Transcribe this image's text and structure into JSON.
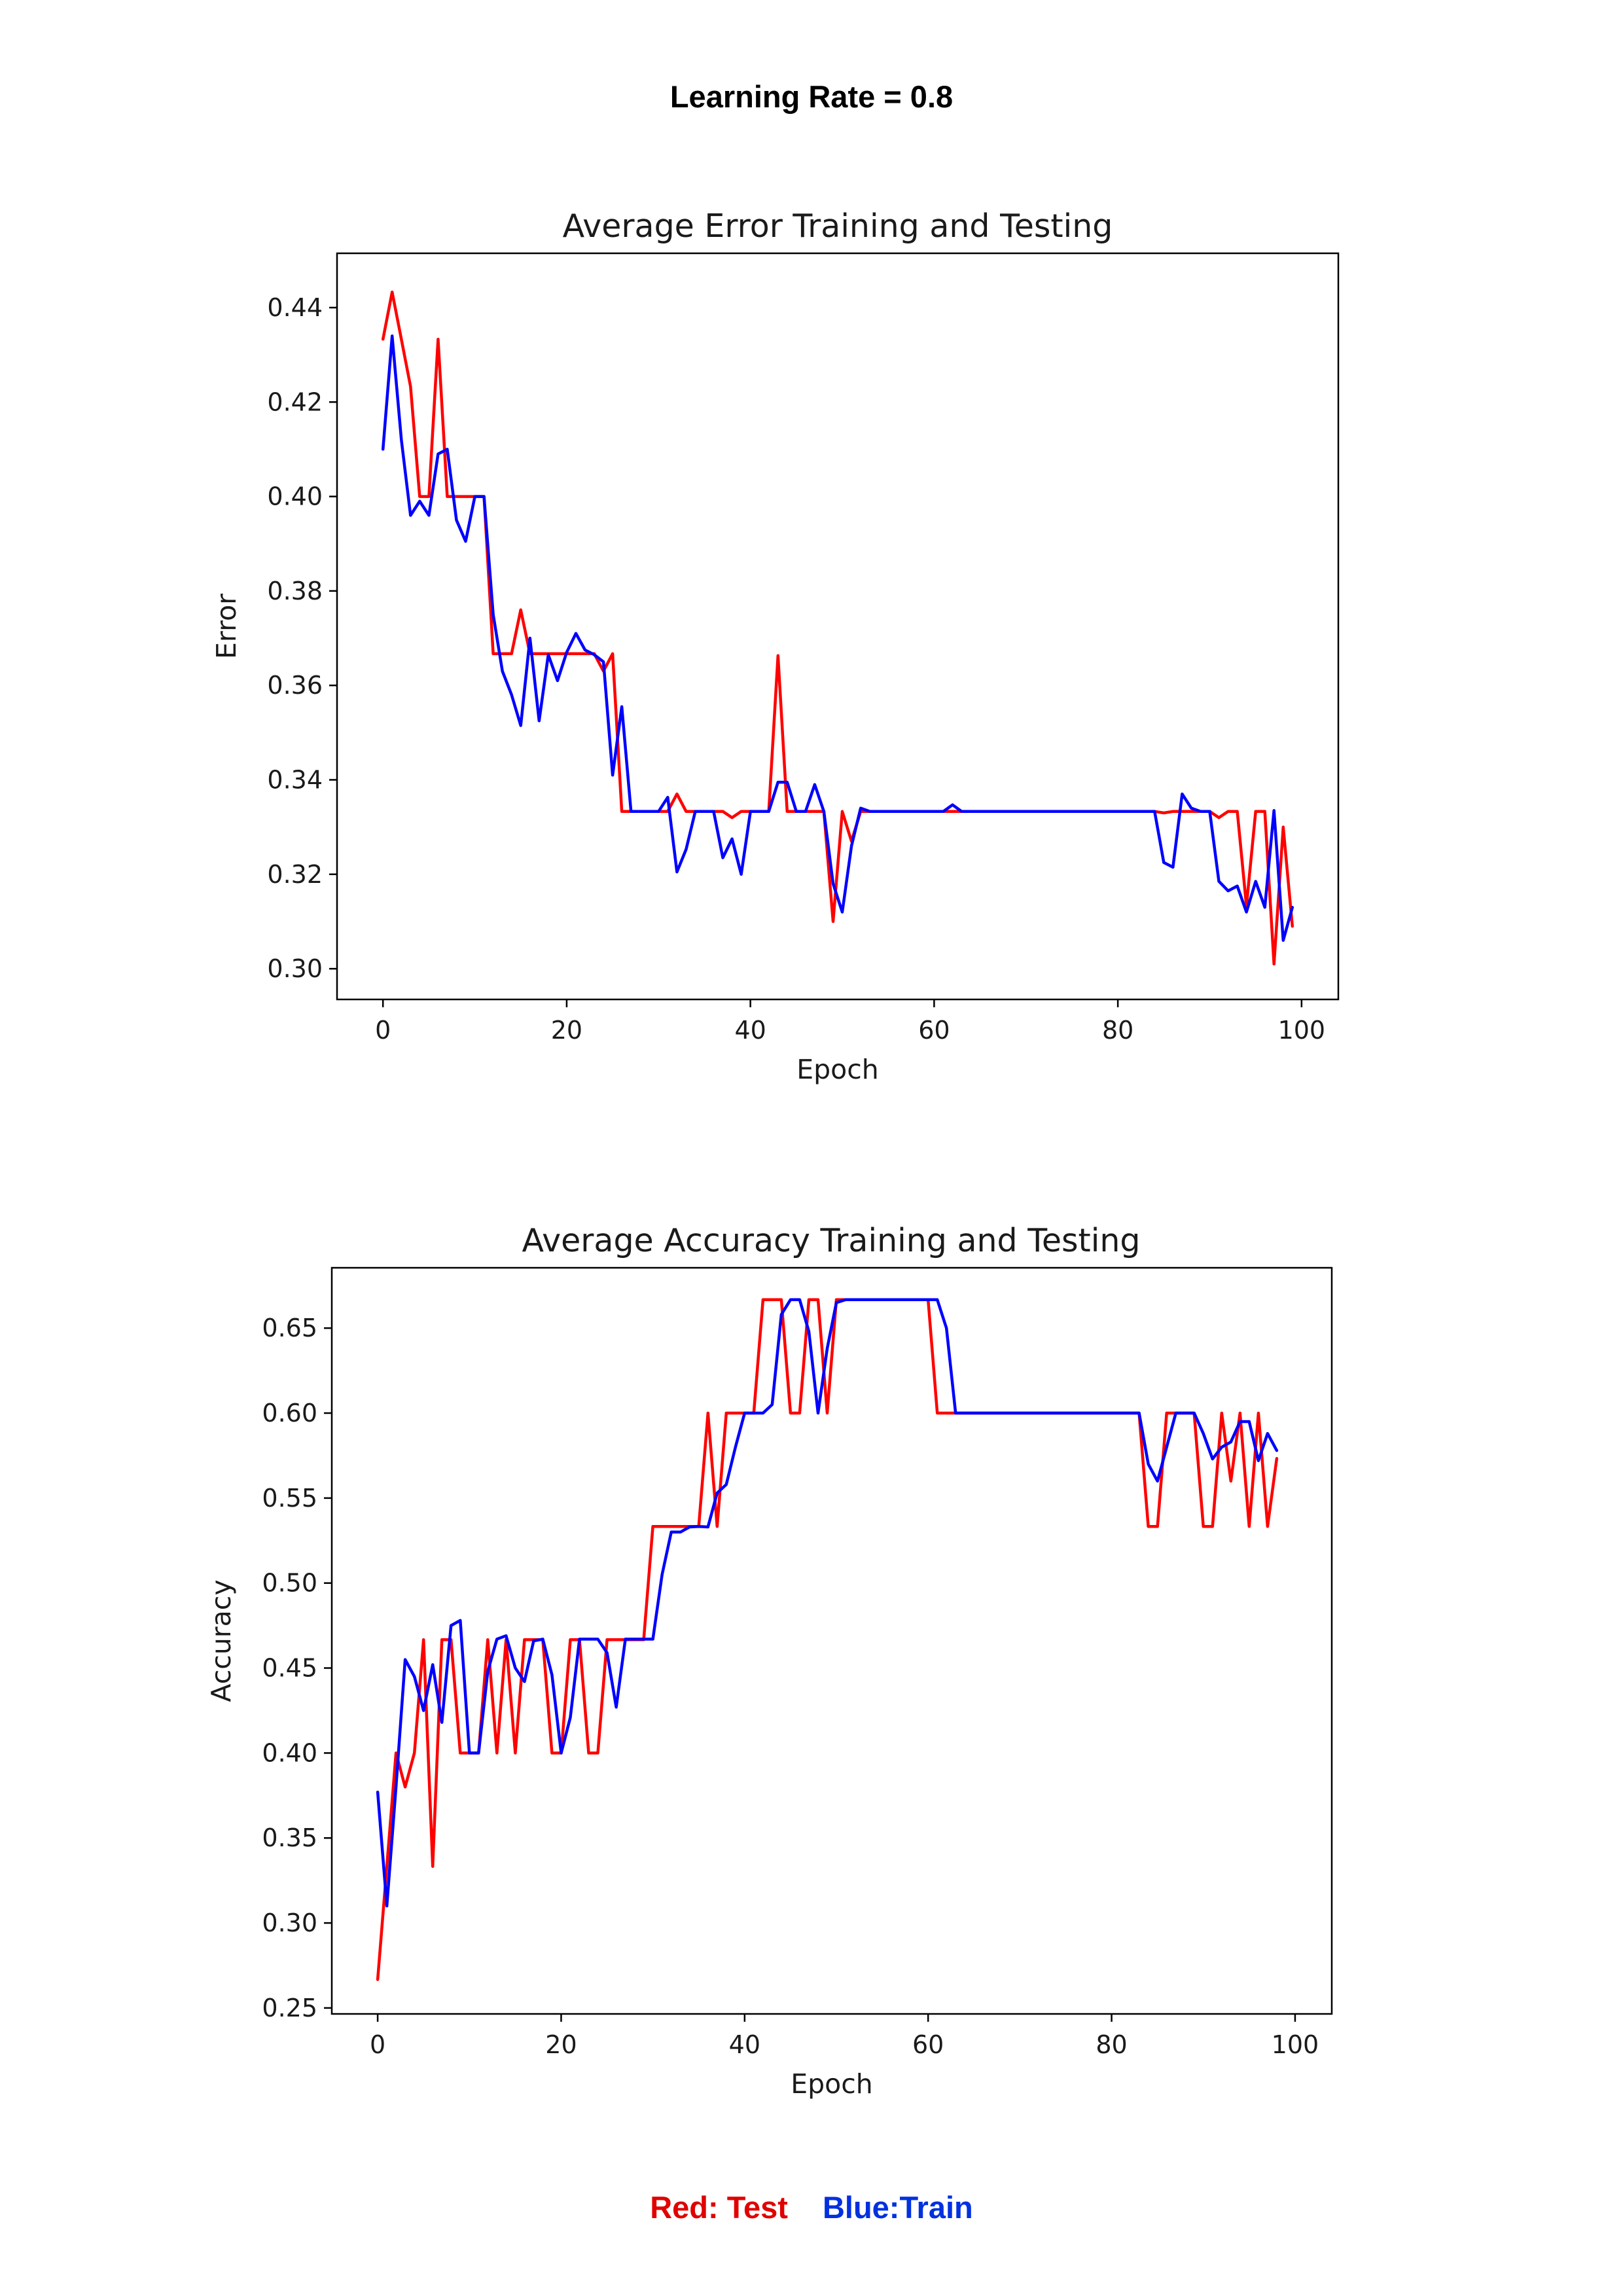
{
  "page": {
    "title": "Learning Rate = 0.8"
  },
  "legend": {
    "test": "Red: Test",
    "train": "Blue:Train"
  },
  "colors": {
    "test": "#ff0000",
    "train": "#0000ff"
  },
  "chart_data": [
    {
      "type": "line",
      "title": "Average Error Training and Testing",
      "xlabel": "Epoch",
      "ylabel": "Error",
      "xlim": [
        -5,
        104
      ],
      "ylim": [
        0.2935,
        0.4515
      ],
      "xticks": [
        0,
        20,
        40,
        60,
        80,
        100
      ],
      "yticks": [
        0.3,
        0.32,
        0.34,
        0.36,
        0.38,
        0.4,
        0.42,
        0.44
      ],
      "ytick_labels": [
        "0.30",
        "0.32",
        "0.34",
        "0.36",
        "0.38",
        "0.40",
        "0.42",
        "0.44"
      ],
      "grid": false,
      "series": [
        {
          "name": "Test",
          "color": "#ff0000",
          "values": [
            0.4333,
            0.4433,
            0.4333,
            0.4233,
            0.4,
            0.4,
            0.4333,
            0.4,
            0.4,
            0.4,
            0.4,
            0.4,
            0.3667,
            0.3667,
            0.3667,
            0.376,
            0.3667,
            0.3667,
            0.3667,
            0.3667,
            0.3667,
            0.3667,
            0.3667,
            0.3667,
            0.363,
            0.3667,
            0.3333,
            0.3333,
            0.3333,
            0.3333,
            0.3333,
            0.3333,
            0.337,
            0.3333,
            0.3333,
            0.3333,
            0.3333,
            0.3333,
            0.332,
            0.3333,
            0.3333,
            0.3333,
            0.3333,
            0.3663,
            0.3333,
            0.3333,
            0.3333,
            0.3333,
            0.3333,
            0.31,
            0.3333,
            0.327,
            0.3333,
            0.3333,
            0.3333,
            0.3333,
            0.3333,
            0.3333,
            0.3333,
            0.3333,
            0.3333,
            0.3333,
            0.3333,
            0.3333,
            0.3333,
            0.3333,
            0.3333,
            0.3333,
            0.3333,
            0.3333,
            0.3333,
            0.3333,
            0.3333,
            0.3333,
            0.3333,
            0.3333,
            0.3333,
            0.3333,
            0.3333,
            0.3333,
            0.3333,
            0.3333,
            0.3333,
            0.3333,
            0.3333,
            0.333,
            0.3333,
            0.3333,
            0.3333,
            0.3333,
            0.3333,
            0.332,
            0.3333,
            0.3333,
            0.3133,
            0.3333,
            0.3333,
            0.301,
            0.33,
            0.309
          ]
        },
        {
          "name": "Train",
          "color": "#0000ff",
          "values": [
            0.41,
            0.434,
            0.412,
            0.396,
            0.399,
            0.396,
            0.409,
            0.41,
            0.395,
            0.3905,
            0.4,
            0.4,
            0.375,
            0.363,
            0.358,
            0.3515,
            0.37,
            0.3525,
            0.3665,
            0.361,
            0.367,
            0.371,
            0.3675,
            0.3665,
            0.365,
            0.341,
            0.3555,
            0.3333,
            0.3333,
            0.3333,
            0.3333,
            0.3363,
            0.3205,
            0.3253,
            0.3333,
            0.3333,
            0.3333,
            0.3235,
            0.3275,
            0.32,
            0.3333,
            0.3333,
            0.3333,
            0.3395,
            0.3395,
            0.3333,
            0.3333,
            0.339,
            0.3333,
            0.318,
            0.312,
            0.326,
            0.334,
            0.3333,
            0.3333,
            0.3333,
            0.3333,
            0.3333,
            0.3333,
            0.3333,
            0.3333,
            0.3333,
            0.3347,
            0.3333,
            0.3333,
            0.3333,
            0.3333,
            0.3333,
            0.3333,
            0.3333,
            0.3333,
            0.3333,
            0.3333,
            0.3333,
            0.3333,
            0.3333,
            0.3333,
            0.3333,
            0.3333,
            0.3333,
            0.3333,
            0.3333,
            0.3333,
            0.3333,
            0.3333,
            0.3225,
            0.3215,
            0.337,
            0.334,
            0.3333,
            0.3333,
            0.3185,
            0.3165,
            0.3175,
            0.312,
            0.3185,
            0.313,
            0.3335,
            0.306,
            0.313
          ]
        }
      ]
    },
    {
      "type": "line",
      "title": "Average Accuracy Training and Testing",
      "xlabel": "Epoch",
      "ylabel": "Accuracy",
      "xlim": [
        -5,
        104
      ],
      "ylim": [
        0.2465,
        0.6855
      ],
      "xticks": [
        0,
        20,
        40,
        60,
        80,
        100
      ],
      "yticks": [
        0.25,
        0.3,
        0.35,
        0.4,
        0.45,
        0.5,
        0.55,
        0.6,
        0.65
      ],
      "ytick_labels": [
        "0.25",
        "0.30",
        "0.35",
        "0.40",
        "0.45",
        "0.50",
        "0.55",
        "0.60",
        "0.65"
      ],
      "grid": false,
      "series": [
        {
          "name": "Test",
          "color": "#ff0000",
          "values": [
            0.2667,
            0.3333,
            0.4,
            0.38,
            0.4,
            0.4667,
            0.3333,
            0.4667,
            0.4667,
            0.4,
            0.4,
            0.4,
            0.4667,
            0.4,
            0.4667,
            0.4,
            0.4667,
            0.4667,
            0.4667,
            0.4,
            0.4,
            0.4667,
            0.4667,
            0.4,
            0.4,
            0.4667,
            0.4667,
            0.4667,
            0.4667,
            0.4667,
            0.5333,
            0.5333,
            0.5333,
            0.5333,
            0.5333,
            0.5333,
            0.6,
            0.5333,
            0.6,
            0.6,
            0.6,
            0.6,
            0.6667,
            0.6667,
            0.6667,
            0.6,
            0.6,
            0.6667,
            0.6667,
            0.6,
            0.6667,
            0.6667,
            0.6667,
            0.6667,
            0.6667,
            0.6667,
            0.6667,
            0.6667,
            0.6667,
            0.6667,
            0.6667,
            0.6,
            0.6,
            0.6,
            0.6,
            0.6,
            0.6,
            0.6,
            0.6,
            0.6,
            0.6,
            0.6,
            0.6,
            0.6,
            0.6,
            0.6,
            0.6,
            0.6,
            0.6,
            0.6,
            0.6,
            0.6,
            0.6,
            0.6,
            0.5333,
            0.5333,
            0.6,
            0.6,
            0.6,
            0.6,
            0.5333,
            0.5333,
            0.6,
            0.56,
            0.6,
            0.5333,
            0.6,
            0.5333,
            0.5733
          ]
        },
        {
          "name": "Train",
          "color": "#0000ff",
          "values": [
            0.377,
            0.31,
            0.38,
            0.455,
            0.445,
            0.425,
            0.452,
            0.418,
            0.475,
            0.478,
            0.4,
            0.4,
            0.448,
            0.467,
            0.469,
            0.45,
            0.442,
            0.466,
            0.467,
            0.446,
            0.4,
            0.421,
            0.467,
            0.467,
            0.467,
            0.459,
            0.427,
            0.467,
            0.467,
            0.467,
            0.467,
            0.505,
            0.53,
            0.53,
            0.533,
            0.5333,
            0.533,
            0.553,
            0.558,
            0.58,
            0.6,
            0.6,
            0.6,
            0.605,
            0.658,
            0.6667,
            0.6667,
            0.648,
            0.6,
            0.638,
            0.665,
            0.6667,
            0.6667,
            0.6667,
            0.6667,
            0.6667,
            0.6667,
            0.6667,
            0.6667,
            0.6667,
            0.6667,
            0.6667,
            0.65,
            0.6,
            0.6,
            0.6,
            0.6,
            0.6,
            0.6,
            0.6,
            0.6,
            0.6,
            0.6,
            0.6,
            0.6,
            0.6,
            0.6,
            0.6,
            0.6,
            0.6,
            0.6,
            0.6,
            0.6,
            0.6,
            0.57,
            0.56,
            0.58,
            0.6,
            0.6,
            0.6,
            0.588,
            0.573,
            0.58,
            0.583,
            0.595,
            0.595,
            0.572,
            0.588,
            0.578
          ]
        }
      ]
    }
  ]
}
